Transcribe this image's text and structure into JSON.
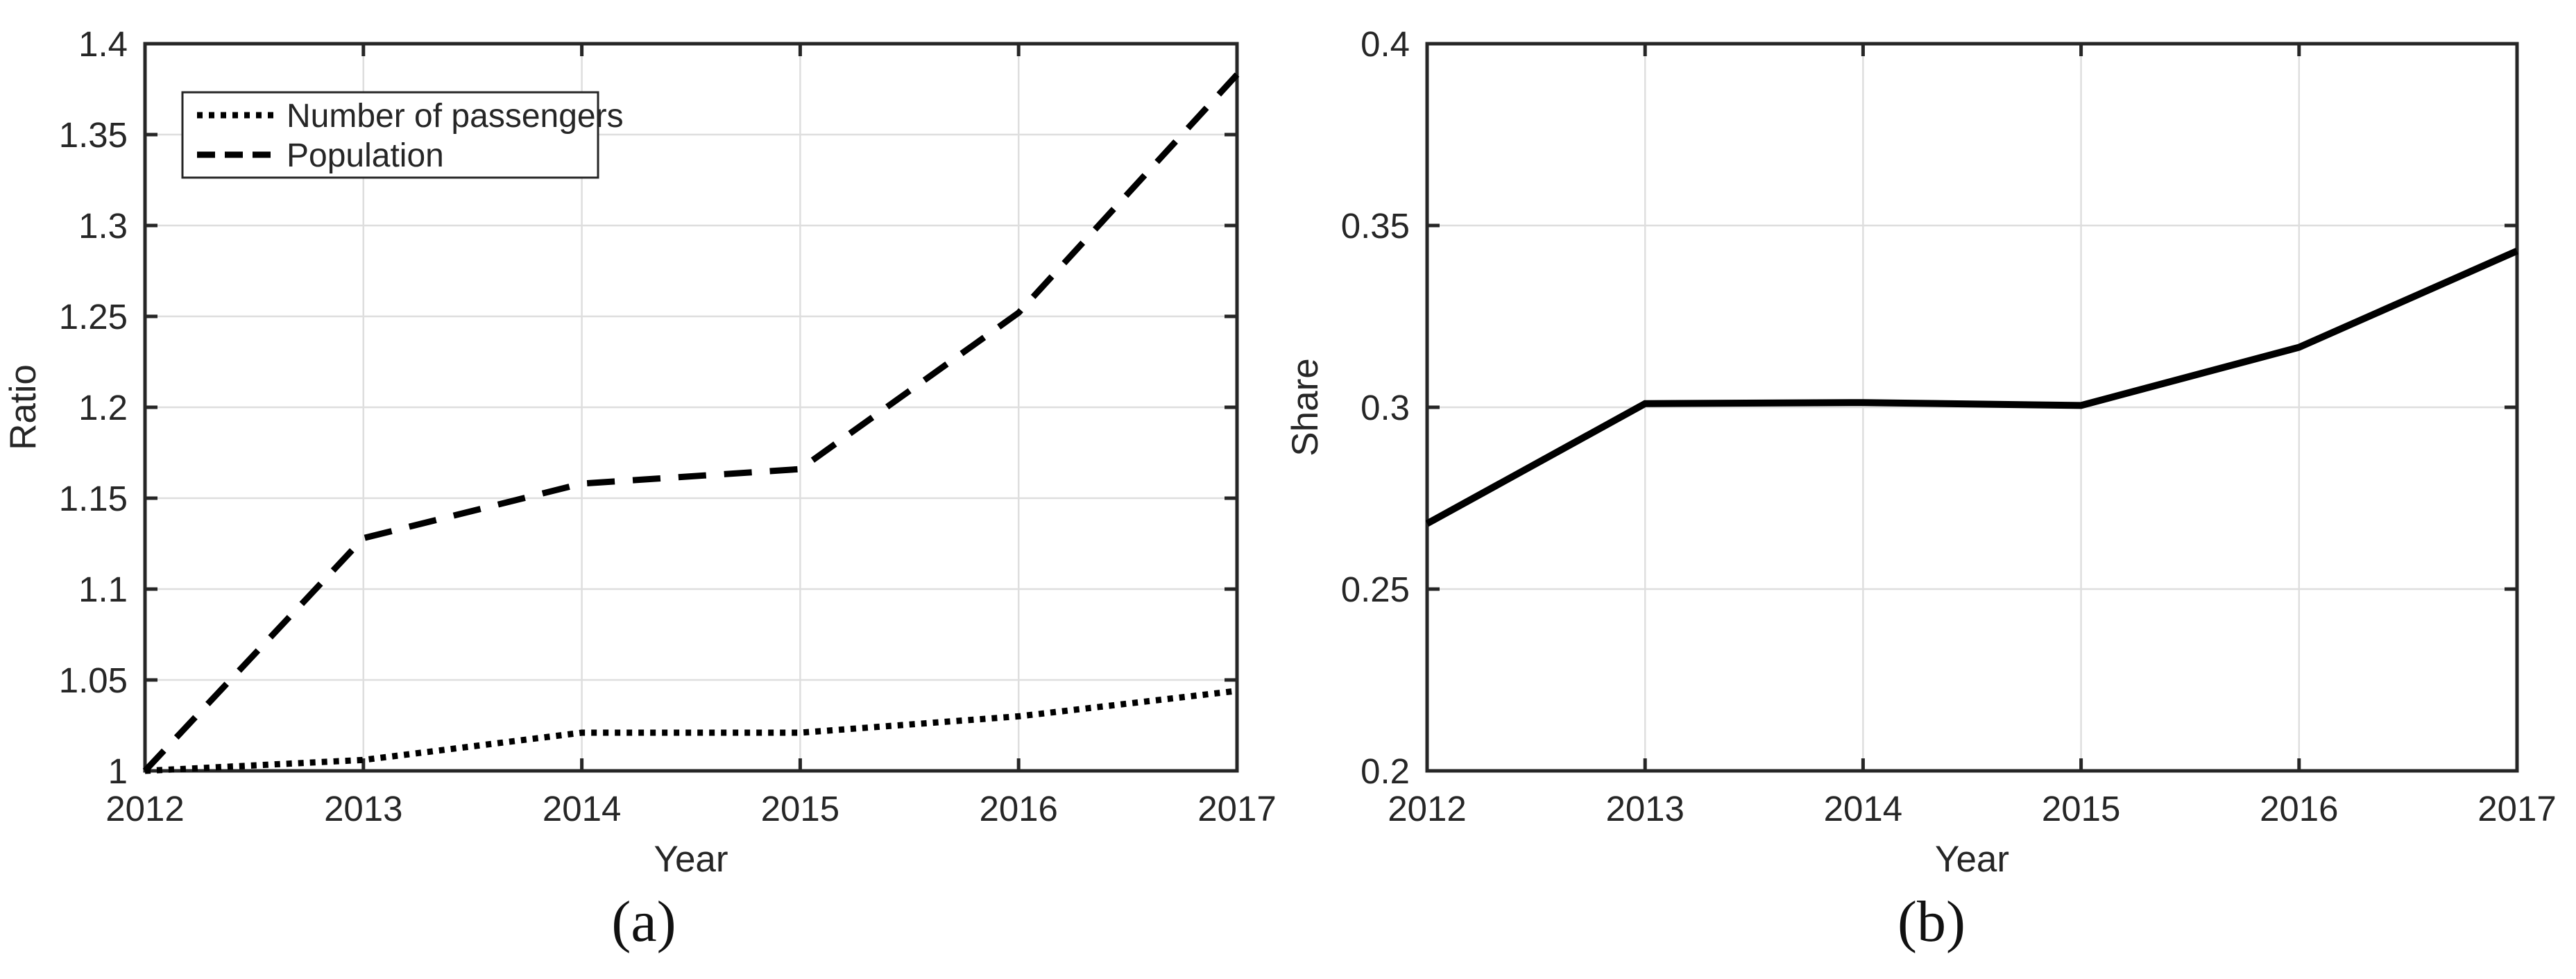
{
  "figure": {
    "background": "#ffffff",
    "captions": {
      "a": "(a)",
      "b": "(b)"
    },
    "text_color": "#262626",
    "grid_color": "#dedede",
    "line_color": "#000000"
  },
  "chart_data": [
    {
      "id": "a",
      "type": "line",
      "caption": "(a)",
      "title": "",
      "xlabel": "Year",
      "ylabel": "Ratio",
      "x": [
        2012,
        2013,
        2014,
        2015,
        2016,
        2017
      ],
      "xlim": [
        2012,
        2017
      ],
      "ylim": [
        1,
        1.4
      ],
      "xtick_labels": [
        "2012",
        "2013",
        "2014",
        "2015",
        "2016",
        "2017"
      ],
      "ytick_values": [
        1,
        1.05,
        1.1,
        1.15,
        1.2,
        1.25,
        1.3,
        1.35,
        1.4
      ],
      "ytick_labels": [
        "1",
        "1.05",
        "1.1",
        "1.15",
        "1.2",
        "1.25",
        "1.3",
        "1.35",
        "1.4"
      ],
      "grid": true,
      "legend_position": "upper-left",
      "series": [
        {
          "name": "Number of passengers",
          "style": "dotted",
          "color": "#000000",
          "values": [
            1.0,
            1.006,
            1.021,
            1.021,
            1.03,
            1.044
          ]
        },
        {
          "name": "Population",
          "style": "dashed",
          "color": "#000000",
          "values": [
            1.0,
            1.128,
            1.158,
            1.166,
            1.252,
            1.383
          ]
        }
      ]
    },
    {
      "id": "b",
      "type": "line",
      "caption": "(b)",
      "title": "",
      "xlabel": "Year",
      "ylabel": "Share",
      "x": [
        2012,
        2013,
        2014,
        2015,
        2016,
        2017
      ],
      "xlim": [
        2012,
        2017
      ],
      "ylim": [
        0.2,
        0.4
      ],
      "xtick_labels": [
        "2012",
        "2013",
        "2014",
        "2015",
        "2016",
        "2017"
      ],
      "ytick_values": [
        0.2,
        0.25,
        0.3,
        0.35,
        0.4
      ],
      "ytick_labels": [
        "0.2",
        "0.25",
        "0.3",
        "0.35",
        "0.4"
      ],
      "grid": true,
      "legend_position": null,
      "series": [
        {
          "name": "Share",
          "style": "solid",
          "color": "#000000",
          "values": [
            0.268,
            0.301,
            0.3013,
            0.3005,
            0.3165,
            0.343
          ]
        }
      ]
    }
  ]
}
